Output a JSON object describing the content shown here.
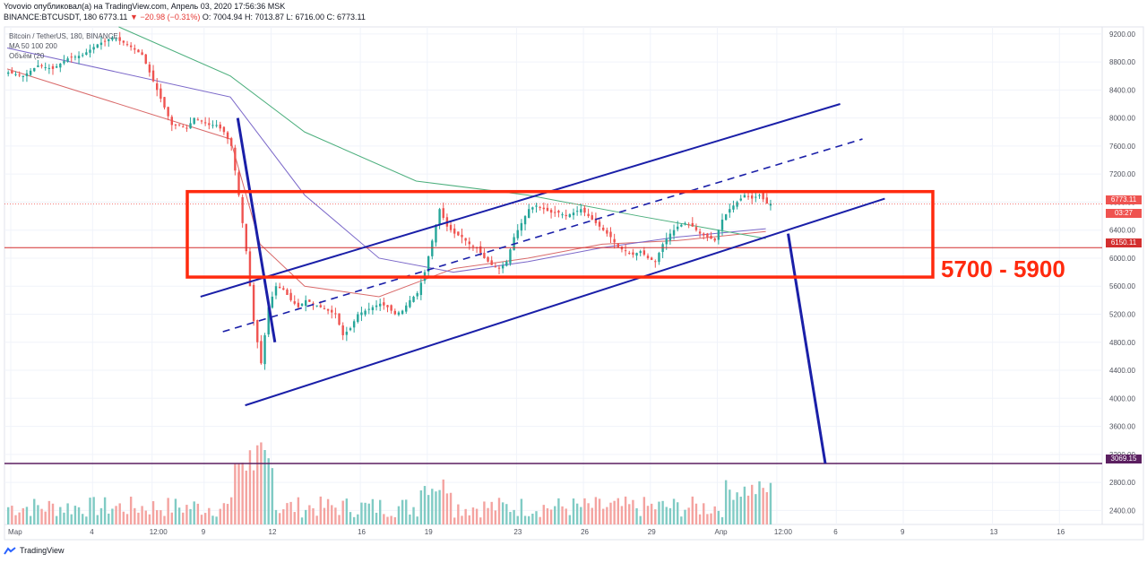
{
  "header": {
    "line1": "Yovovio опубликовал(а) на TradingView.com, Апрель 03, 2020 17:56:36 MSK",
    "symbol": "BINANCE:BTCUSDT, 180",
    "last": "6773.11",
    "change": "▼ −20.98 (−0.31%)",
    "ohlc": "O: 7004.94 H: 7013.87 L: 6716.00 C: 6773.11"
  },
  "legend": {
    "title": "Bitcoin / TetherUS, 180, BINANCE",
    "ma": "MA 50 100 200",
    "volume": "Объём (20"
  },
  "annotation": "5700 - 5900",
  "brand": "TradingView",
  "price_badges": {
    "last_price": "6773.11",
    "countdown": "03:27",
    "level": "6150.11",
    "target": "3069.15"
  },
  "colors": {
    "up": "#26a69a",
    "down": "#ef5350",
    "box": "#ff2a0e",
    "channel": "#1a1fa8",
    "projection": "#1a1fa8",
    "level": "#d32f2f",
    "target": "#5b1f60"
  },
  "chart_data": {
    "type": "candlestick",
    "symbol": "BTCUSDT",
    "timeframe": "180",
    "y_ticks": [
      "9200.00",
      "8800.00",
      "8400.00",
      "8000.00",
      "7600.00",
      "7200.00",
      "6800.00",
      "6400.00",
      "6000.00",
      "5600.00",
      "5200.00",
      "4800.00",
      "4400.00",
      "4000.00",
      "3600.00",
      "3200.00",
      "2800.00",
      "2400.00"
    ],
    "x_ticks": [
      "Мар",
      "4",
      "12:00",
      "9",
      "12",
      "16",
      "19",
      "23",
      "26",
      "29",
      "Апр",
      "12:00",
      "6",
      "9",
      "13",
      "16"
    ],
    "price_path": [
      [
        0,
        8650
      ],
      [
        2,
        8600
      ],
      [
        4,
        8750
      ],
      [
        6,
        8700
      ],
      [
        8,
        8850
      ],
      [
        10,
        8900
      ],
      [
        12,
        9050
      ],
      [
        14,
        9150
      ],
      [
        16,
        9050
      ],
      [
        18,
        8900
      ],
      [
        19,
        8650
      ],
      [
        20,
        8400
      ],
      [
        21,
        8150
      ],
      [
        22,
        7900
      ],
      [
        23,
        7900
      ],
      [
        24,
        7850
      ],
      [
        25,
        8000
      ],
      [
        26,
        7950
      ],
      [
        27,
        7900
      ],
      [
        28,
        7900
      ],
      [
        29,
        7800
      ],
      [
        30,
        7600
      ],
      [
        31,
        6900
      ],
      [
        32,
        6100
      ],
      [
        33,
        5100
      ],
      [
        34,
        4500
      ],
      [
        35,
        5300
      ],
      [
        36,
        5600
      ],
      [
        37,
        5550
      ],
      [
        38,
        5400
      ],
      [
        39,
        5300
      ],
      [
        40,
        5400
      ],
      [
        41,
        5350
      ],
      [
        42,
        5300
      ],
      [
        43,
        5250
      ],
      [
        44,
        5200
      ],
      [
        45,
        4900
      ],
      [
        46,
        5000
      ],
      [
        47,
        5200
      ],
      [
        48,
        5250
      ],
      [
        49,
        5300
      ],
      [
        50,
        5350
      ],
      [
        51,
        5300
      ],
      [
        52,
        5200
      ],
      [
        53,
        5250
      ],
      [
        54,
        5400
      ],
      [
        55,
        5500
      ],
      [
        56,
        5800
      ],
      [
        57,
        6250
      ],
      [
        58,
        6700
      ],
      [
        59,
        6450
      ],
      [
        60,
        6350
      ],
      [
        61,
        6300
      ],
      [
        62,
        6200
      ],
      [
        63,
        6150
      ],
      [
        64,
        6000
      ],
      [
        65,
        5900
      ],
      [
        66,
        5850
      ],
      [
        67,
        5950
      ],
      [
        68,
        6300
      ],
      [
        69,
        6500
      ],
      [
        70,
        6700
      ],
      [
        71,
        6750
      ],
      [
        72,
        6700
      ],
      [
        73,
        6650
      ],
      [
        74,
        6650
      ],
      [
        75,
        6600
      ],
      [
        76,
        6650
      ],
      [
        77,
        6700
      ],
      [
        78,
        6600
      ],
      [
        79,
        6500
      ],
      [
        80,
        6400
      ],
      [
        81,
        6300
      ],
      [
        82,
        6150
      ],
      [
        83,
        6100
      ],
      [
        84,
        6050
      ],
      [
        85,
        6100
      ],
      [
        86,
        6000
      ],
      [
        87,
        5950
      ],
      [
        88,
        6200
      ],
      [
        89,
        6350
      ],
      [
        90,
        6450
      ],
      [
        91,
        6500
      ],
      [
        92,
        6450
      ],
      [
        93,
        6350
      ],
      [
        94,
        6300
      ],
      [
        95,
        6250
      ],
      [
        96,
        6550
      ],
      [
        97,
        6700
      ],
      [
        98,
        6800
      ],
      [
        99,
        6900
      ],
      [
        100,
        6850
      ],
      [
        101,
        6900
      ],
      [
        102,
        6780
      ]
    ],
    "ma": [
      {
        "name": "MA 50",
        "color": "#d96a6a",
        "path": [
          [
            0,
            8700
          ],
          [
            30,
            7700
          ],
          [
            34,
            6200
          ],
          [
            40,
            5600
          ],
          [
            50,
            5450
          ],
          [
            60,
            5850
          ],
          [
            70,
            6000
          ],
          [
            80,
            6200
          ],
          [
            90,
            6250
          ],
          [
            102,
            6380
          ]
        ]
      },
      {
        "name": "MA 100",
        "color": "#7b68c9",
        "path": [
          [
            0,
            9000
          ],
          [
            30,
            8300
          ],
          [
            40,
            6900
          ],
          [
            50,
            6000
          ],
          [
            60,
            5800
          ],
          [
            70,
            5950
          ],
          [
            80,
            6150
          ],
          [
            90,
            6300
          ],
          [
            102,
            6420
          ]
        ]
      },
      {
        "name": "MA 200",
        "color": "#4caf7d",
        "path": [
          [
            15,
            9300
          ],
          [
            30,
            8600
          ],
          [
            40,
            7800
          ],
          [
            55,
            7100
          ],
          [
            70,
            6900
          ],
          [
            85,
            6600
          ],
          [
            102,
            6280
          ]
        ]
      }
    ],
    "annotations": {
      "rectangle": {
        "price_top": 6950,
        "price_bottom": 5730,
        "label": "5700 - 5900"
      },
      "channel_upper": [
        [
          26,
          5450
        ],
        [
          112,
          8200
        ]
      ],
      "channel_mid": [
        [
          29,
          4950
        ],
        [
          115,
          7700
        ]
      ],
      "channel_lower": [
        [
          32,
          3900
        ],
        [
          118,
          6850
        ]
      ],
      "projection": [
        [
          31,
          8000
        ],
        [
          36,
          4800
        ]
      ],
      "projection_down": [
        [
          105,
          6350
        ],
        [
          110,
          3069.15
        ]
      ],
      "level_line": 6150.11,
      "target_line": 3069.15
    },
    "ylim": [
      2200,
      9300
    ]
  }
}
